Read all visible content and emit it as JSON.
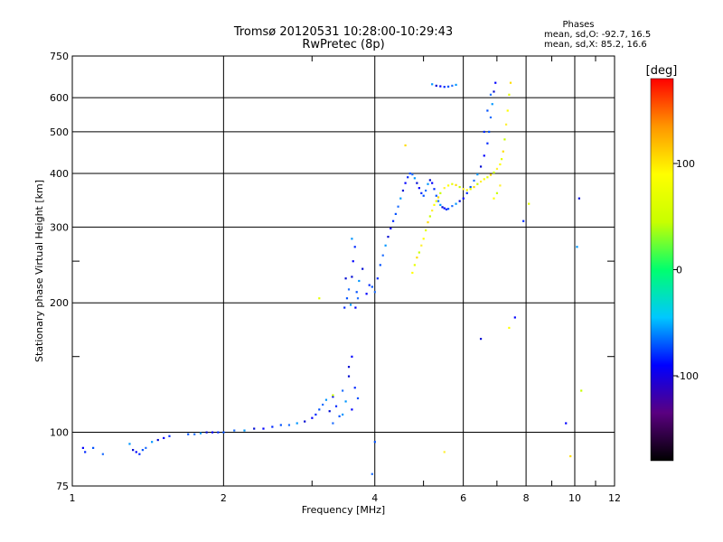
{
  "chart_data": {
    "type": "scatter",
    "title_line1": "Tromsø 20120531 10:28:00-10:29:43",
    "title_line2": "RwPretec (8p)",
    "xlabel": "Frequency [MHz]",
    "ylabel": "Stationary phase Virtual Height [km]",
    "x_scale": "log",
    "y_scale": "log",
    "xlim": [
      1,
      12
    ],
    "ylim": [
      75,
      750
    ],
    "x_ticks": [
      1,
      2,
      4,
      6,
      8,
      10,
      12
    ],
    "x_minor_ticks": [
      3,
      5,
      7,
      9,
      11
    ],
    "y_ticks": [
      75,
      100,
      200,
      300,
      400,
      500,
      600,
      750
    ],
    "y_minor_ticks": [
      150,
      250
    ],
    "grid": true,
    "stats": {
      "heading": "Phases",
      "line1": "mean, sd,O: -92.7, 16.5",
      "line2": "mean, sd,X:  85.2, 16.6"
    },
    "colorbar": {
      "label": "[deg]",
      "range": [
        -180,
        180
      ],
      "ticks": [
        100,
        0,
        -100
      ],
      "colors": [
        "#000000",
        "#5a0080",
        "#0000ff",
        "#00c8ff",
        "#00ff6e",
        "#c8ff00",
        "#ffff00",
        "#ff9600",
        "#ff0000"
      ]
    },
    "series": [
      {
        "mode": "O",
        "points": [
          [
            1.05,
            92
          ],
          [
            1.06,
            90
          ],
          [
            1.1,
            92
          ],
          [
            1.15,
            89
          ],
          [
            1.3,
            94
          ],
          [
            1.32,
            91
          ],
          [
            1.34,
            90
          ],
          [
            1.36,
            89
          ],
          [
            1.38,
            91
          ],
          [
            1.4,
            92
          ],
          [
            1.44,
            95
          ],
          [
            1.48,
            96
          ],
          [
            1.52,
            97
          ],
          [
            1.56,
            98
          ],
          [
            1.7,
            99
          ],
          [
            1.75,
            99
          ],
          [
            1.8,
            99.5
          ],
          [
            1.85,
            100
          ],
          [
            1.9,
            100
          ],
          [
            1.95,
            100
          ],
          [
            2.0,
            100
          ],
          [
            2.1,
            101
          ],
          [
            2.2,
            101
          ],
          [
            2.3,
            102
          ],
          [
            2.4,
            102
          ],
          [
            2.5,
            103
          ],
          [
            2.6,
            104
          ],
          [
            2.7,
            104
          ],
          [
            2.8,
            105
          ],
          [
            2.9,
            106
          ],
          [
            3.0,
            108
          ],
          [
            3.05,
            110
          ],
          [
            3.1,
            113
          ],
          [
            3.15,
            116
          ],
          [
            3.2,
            119
          ],
          [
            3.25,
            112
          ],
          [
            3.3,
            121
          ],
          [
            3.35,
            115
          ],
          [
            3.4,
            109
          ],
          [
            3.45,
            125
          ],
          [
            3.5,
            118
          ],
          [
            3.55,
            135
          ],
          [
            3.6,
            113
          ],
          [
            3.65,
            127
          ],
          [
            3.7,
            120
          ],
          [
            3.3,
            105
          ],
          [
            3.45,
            110
          ],
          [
            3.55,
            142
          ],
          [
            3.6,
            150
          ],
          [
            3.48,
            195
          ],
          [
            3.52,
            205
          ],
          [
            3.55,
            215
          ],
          [
            3.58,
            198
          ],
          [
            3.6,
            230
          ],
          [
            3.62,
            250
          ],
          [
            3.65,
            270
          ],
          [
            3.68,
            212
          ],
          [
            3.7,
            205
          ],
          [
            3.72,
            225
          ],
          [
            3.78,
            240
          ],
          [
            3.85,
            210
          ],
          [
            3.9,
            220
          ],
          [
            3.95,
            218
          ],
          [
            4.0,
            212
          ],
          [
            3.6,
            282
          ],
          [
            3.5,
            228
          ],
          [
            3.66,
            195
          ],
          [
            4.05,
            228
          ],
          [
            4.1,
            245
          ],
          [
            4.15,
            258
          ],
          [
            4.2,
            272
          ],
          [
            4.25,
            285
          ],
          [
            4.3,
            298
          ],
          [
            4.35,
            310
          ],
          [
            4.4,
            322
          ],
          [
            4.45,
            335
          ],
          [
            4.5,
            350
          ],
          [
            4.55,
            365
          ],
          [
            4.6,
            380
          ],
          [
            4.65,
            392
          ],
          [
            4.7,
            400
          ],
          [
            4.75,
            398
          ],
          [
            4.8,
            390
          ],
          [
            4.85,
            380
          ],
          [
            4.9,
            370
          ],
          [
            4.95,
            360
          ],
          [
            5.0,
            355
          ],
          [
            5.05,
            365
          ],
          [
            5.1,
            378
          ],
          [
            5.15,
            386
          ],
          [
            5.2,
            380
          ],
          [
            5.25,
            368
          ],
          [
            5.3,
            355
          ],
          [
            5.35,
            345
          ],
          [
            5.4,
            338
          ],
          [
            5.45,
            334
          ],
          [
            5.5,
            332
          ],
          [
            5.55,
            330
          ],
          [
            5.6,
            331
          ],
          [
            5.7,
            336
          ],
          [
            5.8,
            340
          ],
          [
            5.9,
            345
          ],
          [
            6.0,
            350
          ],
          [
            6.1,
            360
          ],
          [
            6.2,
            372
          ],
          [
            6.3,
            385
          ],
          [
            6.4,
            398
          ],
          [
            6.5,
            415
          ],
          [
            6.6,
            440
          ],
          [
            6.7,
            470
          ],
          [
            6.75,
            500
          ],
          [
            6.8,
            540
          ],
          [
            6.85,
            580
          ],
          [
            6.9,
            620
          ],
          [
            6.95,
            650
          ],
          [
            6.6,
            500
          ],
          [
            6.7,
            560
          ],
          [
            6.8,
            610
          ],
          [
            5.2,
            645
          ],
          [
            5.3,
            640
          ],
          [
            5.4,
            638
          ],
          [
            5.5,
            636
          ],
          [
            5.6,
            637
          ],
          [
            5.7,
            640
          ],
          [
            5.8,
            643
          ],
          [
            6.5,
            165
          ],
          [
            7.6,
            185
          ],
          [
            7.9,
            310
          ],
          [
            4.0,
            95
          ],
          [
            3.95,
            80
          ],
          [
            10.1,
            270
          ],
          [
            10.2,
            350
          ],
          [
            9.6,
            105
          ]
        ]
      },
      {
        "mode": "X",
        "points": [
          [
            4.75,
            235
          ],
          [
            4.8,
            245
          ],
          [
            4.85,
            255
          ],
          [
            4.9,
            262
          ],
          [
            4.95,
            272
          ],
          [
            5.0,
            282
          ],
          [
            5.05,
            295
          ],
          [
            5.1,
            308
          ],
          [
            5.15,
            318
          ],
          [
            5.2,
            328
          ],
          [
            5.25,
            338
          ],
          [
            5.3,
            345
          ],
          [
            5.35,
            352
          ],
          [
            5.4,
            360
          ],
          [
            5.5,
            370
          ],
          [
            5.6,
            375
          ],
          [
            5.7,
            378
          ],
          [
            5.8,
            376
          ],
          [
            5.9,
            372
          ],
          [
            6.0,
            368
          ],
          [
            6.1,
            366
          ],
          [
            6.2,
            368
          ],
          [
            6.3,
            372
          ],
          [
            6.4,
            378
          ],
          [
            6.5,
            383
          ],
          [
            6.6,
            388
          ],
          [
            6.7,
            392
          ],
          [
            6.8,
            397
          ],
          [
            6.9,
            402
          ],
          [
            7.0,
            410
          ],
          [
            7.1,
            420
          ],
          [
            7.15,
            432
          ],
          [
            7.2,
            450
          ],
          [
            7.25,
            480
          ],
          [
            7.3,
            520
          ],
          [
            7.35,
            560
          ],
          [
            7.4,
            610
          ],
          [
            7.45,
            650
          ],
          [
            7.0,
            360
          ],
          [
            7.1,
            375
          ],
          [
            6.9,
            350
          ],
          [
            3.1,
            205
          ],
          [
            4.6,
            465
          ],
          [
            3.3,
            122
          ],
          [
            5.5,
            90
          ],
          [
            7.4,
            175
          ],
          [
            8.1,
            340
          ],
          [
            9.8,
            88
          ],
          [
            10.3,
            125
          ]
        ]
      }
    ]
  }
}
